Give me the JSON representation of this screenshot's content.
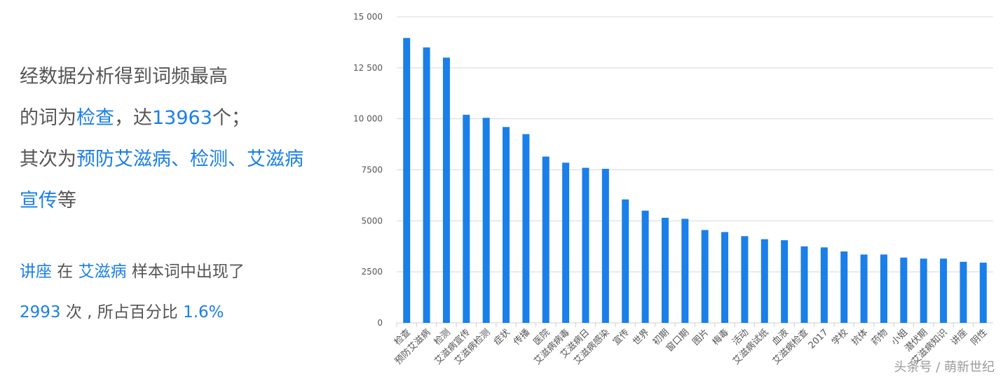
{
  "summary": {
    "line1": "经数据分析得到词频最高",
    "line2_prefix": "的词为",
    "top_word": "检查",
    "line2_mid": "，达",
    "top_count": "13963",
    "line2_suffix": "个；",
    "line3_prefix": "其次为",
    "runners_up_a": "预防艾滋病、检测、艾滋病",
    "runners_up_b": "宣传",
    "line4_suffix": "等"
  },
  "detail": {
    "word": "讲座",
    "in_text": " 在 ",
    "sample": "艾滋病",
    "appear_text": " 样本词中出现了",
    "count": "2993",
    "times_text": " 次 , 所占百分比 ",
    "percent": "1.6%"
  },
  "watermark": "头条号 / 萌新世纪",
  "colors": {
    "bar": "#1a7fe8",
    "highlight": "#1a7fe8",
    "text": "#555555",
    "grid": "#d8d8d8"
  },
  "chart_data": {
    "type": "bar",
    "title": "",
    "xlabel": "",
    "ylabel": "",
    "ylim": [
      0,
      15000
    ],
    "yticks": [
      0,
      2500,
      5000,
      7500,
      10000,
      12500,
      15000
    ],
    "ytick_labels": [
      "0",
      "2500",
      "5000",
      "7500",
      "10 000",
      "12 500",
      "15 000"
    ],
    "grid": true,
    "categories": [
      "检查",
      "预防艾滋病",
      "检测",
      "艾滋病宣传",
      "艾滋病检测",
      "症状",
      "传播",
      "医院",
      "艾滋病病毒",
      "艾滋病日",
      "艾滋病感染",
      "宣传",
      "世界",
      "初期",
      "窗口期",
      "图片",
      "梅毒",
      "活动",
      "艾滋病试纸",
      "血液",
      "艾滋病检查",
      "2017",
      "学校",
      "抗体",
      "药物",
      "小姐",
      "潜伏期",
      "艾滋病知识",
      "讲座",
      "阴性"
    ],
    "values": [
      13963,
      13500,
      13000,
      10200,
      10050,
      9600,
      9250,
      8150,
      7850,
      7600,
      7550,
      6050,
      5500,
      5150,
      5100,
      4550,
      4450,
      4250,
      4100,
      4050,
      3750,
      3700,
      3500,
      3350,
      3350,
      3200,
      3150,
      3150,
      2993,
      2950
    ]
  }
}
